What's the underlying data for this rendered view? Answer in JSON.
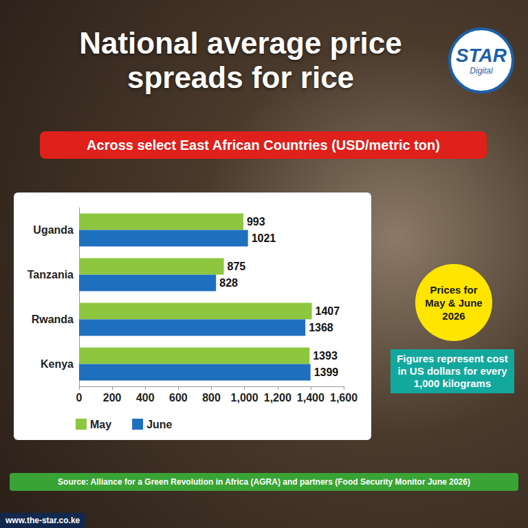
{
  "chart_data": {
    "type": "bar",
    "title": "National average price spreads for rice",
    "subtitle": "Across select East African Countries (USD/metric ton)",
    "logo": {
      "name": "STAR",
      "sub": "Digital"
    },
    "badge": "Prices for May & June 2026",
    "note": "Figures represent cost in US dollars for every 1,000 kilograms",
    "source": "Source: Alliance for a Green Revolution in Africa (AGRA) and partners (Food Security Monitor June 2026)",
    "website": "www.the-star.co.ke",
    "categories": [
      "Uganda",
      "Tanzania",
      "Rwanda",
      "Kenya"
    ],
    "series": [
      {
        "name": "May",
        "color": "#8dc63f",
        "values": [
          993,
          875,
          1407,
          1393
        ]
      },
      {
        "name": "June",
        "color": "#1f6fbf",
        "values": [
          1021,
          828,
          1368,
          1399
        ]
      }
    ],
    "xlim": [
      0,
      1600
    ],
    "xticks": [
      0,
      200,
      400,
      600,
      800,
      1000,
      1200,
      1400,
      1600
    ],
    "orientation": "horizontal",
    "data_labels": true,
    "legend": "bottom",
    "grid": false
  }
}
